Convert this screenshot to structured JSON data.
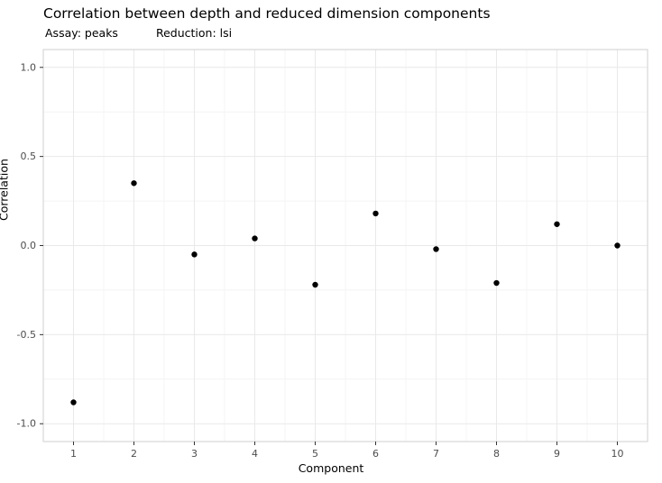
{
  "title": "Correlation between depth and reduced dimension components",
  "subtitle_assay": "Assay: peaks",
  "subtitle_reduction": "Reduction: lsi",
  "chart_data": {
    "type": "scatter",
    "title": "Correlation between depth and reduced dimension components",
    "subtitle": "Assay: peaks      Reduction: lsi",
    "xlabel": "Component",
    "ylabel": "Correlation",
    "x": [
      1,
      2,
      3,
      4,
      5,
      6,
      7,
      8,
      9,
      10
    ],
    "y": [
      -0.88,
      0.35,
      -0.05,
      0.04,
      -0.22,
      0.18,
      -0.02,
      -0.21,
      0.12,
      0.0
    ],
    "xlim": [
      0.5,
      10.5
    ],
    "ylim": [
      -1.1,
      1.1
    ],
    "x_ticks": [
      1,
      2,
      3,
      4,
      5,
      6,
      7,
      8,
      9,
      10
    ],
    "x_tick_labels": [
      "1",
      "2",
      "3",
      "4",
      "5",
      "6",
      "7",
      "8",
      "9",
      "10"
    ],
    "y_ticks": [
      -1.0,
      -0.5,
      0.0,
      0.5,
      1.0
    ],
    "y_tick_labels": [
      "-1.0",
      "-0.5",
      "0.0",
      "0.5",
      "1.0"
    ],
    "x_minor": [
      1.5,
      2.5,
      3.5,
      4.5,
      5.5,
      6.5,
      7.5,
      8.5,
      9.5
    ],
    "y_minor": [
      -0.75,
      -0.25,
      0.25,
      0.75
    ],
    "grid": true,
    "legend": "none",
    "point_color": "#000000",
    "point_radius": 3.2,
    "grid_major_color": "#e9e9e9",
    "grid_minor_color": "#f4f4f4",
    "panel_border_color": "#d7d7d7",
    "tick_color": "#333333",
    "tick_label_color": "#4d4d4d"
  }
}
